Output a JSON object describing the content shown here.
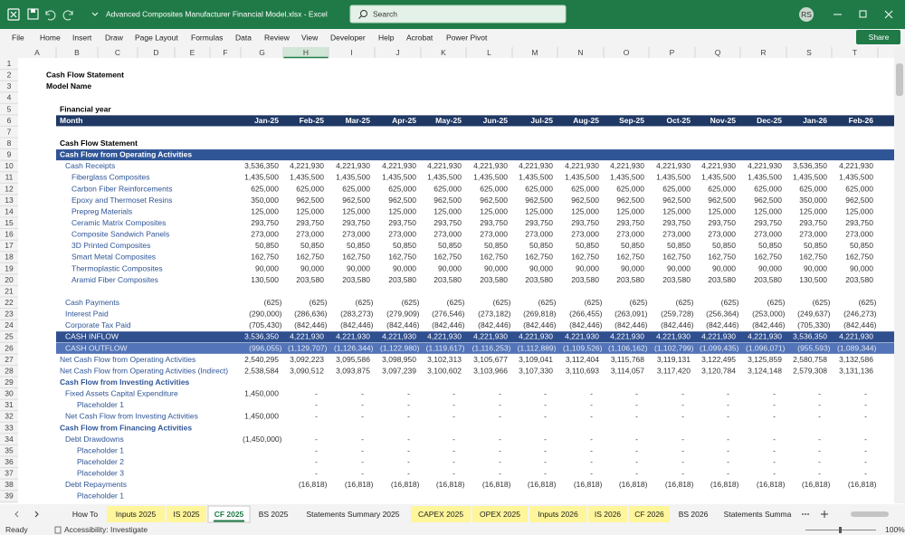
{
  "window": {
    "file_title": "Advanced Composites Manufacturer Financial Model.xlsx  -  Excel",
    "search": "Search",
    "user": "RS"
  },
  "ribbon": {
    "tabs": [
      "File",
      "Home",
      "Insert",
      "Draw",
      "Page Layout",
      "Formulas",
      "Data",
      "Review",
      "View",
      "Developer",
      "Help",
      "Acrobat",
      "Power Pivot"
    ],
    "share": "Share"
  },
  "sheet": {
    "columns": [
      "A",
      "B",
      "C",
      "D",
      "E",
      "F",
      "G",
      "H",
      "I",
      "J",
      "K",
      "L",
      "M",
      "N",
      "O",
      "P",
      "Q",
      "R",
      "S",
      "T"
    ],
    "row_numbers": [
      1,
      2,
      3,
      4,
      5,
      6,
      7,
      8,
      9,
      10,
      11,
      12,
      13,
      14,
      15,
      16,
      17,
      18,
      19,
      20,
      21,
      22,
      23,
      24,
      25,
      26,
      27,
      28,
      29,
      30,
      31,
      32,
      33,
      34,
      35,
      36,
      37,
      38,
      39
    ],
    "rows": [
      null,
      {
        "label": "Cash Flow Statement"
      },
      {
        "label": "Model Name"
      },
      null,
      {
        "label": "Financial year"
      },
      {
        "label": "Month",
        "values": [
          "Jan-25",
          "Feb-25",
          "Mar-25",
          "Apr-25",
          "May-25",
          "Jun-25",
          "Jul-25",
          "Aug-25",
          "Sep-25",
          "Oct-25",
          "Nov-25",
          "Dec-25",
          "Jan-26",
          "Feb-26"
        ]
      },
      null,
      {
        "label": "Cash Flow Statement"
      },
      {
        "label": "Cash Flow from Operating Activities"
      },
      {
        "label": "Cash Receipts",
        "values": [
          "3,536,350",
          "4,221,930",
          "4,221,930",
          "4,221,930",
          "4,221,930",
          "4,221,930",
          "4,221,930",
          "4,221,930",
          "4,221,930",
          "4,221,930",
          "4,221,930",
          "4,221,930",
          "3,536,350",
          "4,221,930"
        ]
      },
      {
        "label": "Fiberglass Composites",
        "values": [
          "1,435,500",
          "1,435,500",
          "1,435,500",
          "1,435,500",
          "1,435,500",
          "1,435,500",
          "1,435,500",
          "1,435,500",
          "1,435,500",
          "1,435,500",
          "1,435,500",
          "1,435,500",
          "1,435,500",
          "1,435,500"
        ]
      },
      {
        "label": "Carbon Fiber Reinforcements",
        "values": [
          "625,000",
          "625,000",
          "625,000",
          "625,000",
          "625,000",
          "625,000",
          "625,000",
          "625,000",
          "625,000",
          "625,000",
          "625,000",
          "625,000",
          "625,000",
          "625,000"
        ]
      },
      {
        "label": "Epoxy and Thermoset Resins",
        "values": [
          "350,000",
          "962,500",
          "962,500",
          "962,500",
          "962,500",
          "962,500",
          "962,500",
          "962,500",
          "962,500",
          "962,500",
          "962,500",
          "962,500",
          "350,000",
          "962,500"
        ]
      },
      {
        "label": "Prepreg Materials",
        "values": [
          "125,000",
          "125,000",
          "125,000",
          "125,000",
          "125,000",
          "125,000",
          "125,000",
          "125,000",
          "125,000",
          "125,000",
          "125,000",
          "125,000",
          "125,000",
          "125,000"
        ]
      },
      {
        "label": "Ceramic Matrix Composites",
        "values": [
          "293,750",
          "293,750",
          "293,750",
          "293,750",
          "293,750",
          "293,750",
          "293,750",
          "293,750",
          "293,750",
          "293,750",
          "293,750",
          "293,750",
          "293,750",
          "293,750"
        ]
      },
      {
        "label": "Composite Sandwich Panels",
        "values": [
          "273,000",
          "273,000",
          "273,000",
          "273,000",
          "273,000",
          "273,000",
          "273,000",
          "273,000",
          "273,000",
          "273,000",
          "273,000",
          "273,000",
          "273,000",
          "273,000"
        ]
      },
      {
        "label": "3D Printed Composites",
        "values": [
          "50,850",
          "50,850",
          "50,850",
          "50,850",
          "50,850",
          "50,850",
          "50,850",
          "50,850",
          "50,850",
          "50,850",
          "50,850",
          "50,850",
          "50,850",
          "50,850"
        ]
      },
      {
        "label": "Smart Metal Composites",
        "values": [
          "162,750",
          "162,750",
          "162,750",
          "162,750",
          "162,750",
          "162,750",
          "162,750",
          "162,750",
          "162,750",
          "162,750",
          "162,750",
          "162,750",
          "162,750",
          "162,750"
        ]
      },
      {
        "label": "Thermoplastic Composites",
        "values": [
          "90,000",
          "90,000",
          "90,000",
          "90,000",
          "90,000",
          "90,000",
          "90,000",
          "90,000",
          "90,000",
          "90,000",
          "90,000",
          "90,000",
          "90,000",
          "90,000"
        ]
      },
      {
        "label": "Aramid Fiber Composites",
        "values": [
          "130,500",
          "203,580",
          "203,580",
          "203,580",
          "203,580",
          "203,580",
          "203,580",
          "203,580",
          "203,580",
          "203,580",
          "203,580",
          "203,580",
          "130,500",
          "203,580"
        ]
      },
      null,
      {
        "label": "Cash Payments",
        "values": [
          "(625)",
          "(625)",
          "(625)",
          "(625)",
          "(625)",
          "(625)",
          "(625)",
          "(625)",
          "(625)",
          "(625)",
          "(625)",
          "(625)",
          "(625)",
          "(625)"
        ]
      },
      {
        "label": "Interest Paid",
        "values": [
          "(290,000)",
          "(286,636)",
          "(283,273)",
          "(279,909)",
          "(276,546)",
          "(273,182)",
          "(269,818)",
          "(266,455)",
          "(263,091)",
          "(259,728)",
          "(256,364)",
          "(253,000)",
          "(249,637)",
          "(246,273)"
        ]
      },
      {
        "label": "Corporate Tax Paid",
        "values": [
          "(705,430)",
          "(842,446)",
          "(842,446)",
          "(842,446)",
          "(842,446)",
          "(842,446)",
          "(842,446)",
          "(842,446)",
          "(842,446)",
          "(842,446)",
          "(842,446)",
          "(842,446)",
          "(705,330)",
          "(842,446)"
        ]
      },
      {
        "label": "CASH INFLOW",
        "values": [
          "3,536,350",
          "4,221,930",
          "4,221,930",
          "4,221,930",
          "4,221,930",
          "4,221,930",
          "4,221,930",
          "4,221,930",
          "4,221,930",
          "4,221,930",
          "4,221,930",
          "4,221,930",
          "3,536,350",
          "4,221,930"
        ]
      },
      {
        "label": "CASH OUTFLOW",
        "values": [
          "(996,055)",
          "(1,129,707)",
          "(1,126,344)",
          "(1,122,980)",
          "(1,119,617)",
          "(1,116,253)",
          "(1,112,889)",
          "(1,109,526)",
          "(1,106,162)",
          "(1,102,799)",
          "(1,099,435)",
          "(1,096,071)",
          "(955,593)",
          "(1,089,344)"
        ]
      },
      {
        "label": "Net Cash Flow from Operating Activities",
        "values": [
          "2,540,295",
          "3,092,223",
          "3,095,586",
          "3,098,950",
          "3,102,313",
          "3,105,677",
          "3,109,041",
          "3,112,404",
          "3,115,768",
          "3,119,131",
          "3,122,495",
          "3,125,859",
          "2,580,758",
          "3,132,586"
        ]
      },
      {
        "label": "Net Cash Flow from Operating Activities (Indirect)",
        "values": [
          "2,538,584",
          "3,090,512",
          "3,093,875",
          "3,097,239",
          "3,100,602",
          "3,103,966",
          "3,107,330",
          "3,110,693",
          "3,114,057",
          "3,117,420",
          "3,120,784",
          "3,124,148",
          "2,579,308",
          "3,131,136"
        ]
      },
      {
        "label": "Cash Flow from Investing Activities"
      },
      {
        "label": "Fixed Assets Capital Expenditure",
        "values": [
          "1,450,000",
          "-",
          "-",
          "-",
          "-",
          "-",
          "-",
          "-",
          "-",
          "-",
          "-",
          "-",
          "-",
          "-"
        ]
      },
      {
        "label": "Placeholder 1",
        "values": [
          null,
          "-",
          "-",
          "-",
          "-",
          "-",
          "-",
          "-",
          "-",
          "-",
          "-",
          "-",
          "-",
          "-"
        ]
      },
      {
        "label": "Net Cash Flow from Investing Activities",
        "values": [
          "1,450,000",
          "-",
          "-",
          "-",
          "-",
          "-",
          "-",
          "-",
          "-",
          "-",
          "-",
          "-",
          "-",
          "-"
        ]
      },
      {
        "label": "Cash Flow from Financing Activities"
      },
      {
        "label": "Debt Drawdowns",
        "values": [
          "(1,450,000)",
          "-",
          "-",
          "-",
          "-",
          "-",
          "-",
          "-",
          "-",
          "-",
          "-",
          "-",
          "-",
          "-"
        ]
      },
      {
        "label": "Placeholder 1",
        "values": [
          null,
          "-",
          "-",
          "-",
          "-",
          "-",
          "-",
          "-",
          "-",
          "-",
          "-",
          "-",
          "-",
          "-"
        ]
      },
      {
        "label": "Placeholder 2",
        "values": [
          null,
          "-",
          "-",
          "-",
          "-",
          "-",
          "-",
          "-",
          "-",
          "-",
          "-",
          "-",
          "-",
          "-"
        ]
      },
      {
        "label": "Placeholder 3",
        "values": [
          null,
          "-",
          "-",
          "-",
          "-",
          "-",
          "-",
          "-",
          "-",
          "-",
          "-",
          "-",
          "-",
          "-"
        ]
      },
      {
        "label": "Debt Repayments",
        "values": [
          null,
          "(16,818)",
          "(16,818)",
          "(16,818)",
          "(16,818)",
          "(16,818)",
          "(16,818)",
          "(16,818)",
          "(16,818)",
          "(16,818)",
          "(16,818)",
          "(16,818)",
          "(16,818)",
          "(16,818)"
        ]
      },
      {
        "label": "Placeholder 1"
      }
    ]
  },
  "sheet_tabs": [
    {
      "name": "How To"
    },
    {
      "name": "Inputs 2025",
      "color": "#fff59a"
    },
    {
      "name": "IS 2025",
      "color": "#fff59a"
    },
    {
      "name": "CF 2025",
      "active": true
    },
    {
      "name": "BS 2025"
    },
    {
      "name": "Statements Summary 2025"
    },
    {
      "name": "CAPEX 2025",
      "color": "#fff59a"
    },
    {
      "name": "OPEX 2025",
      "color": "#fff59a"
    },
    {
      "name": "Inputs 2026",
      "color": "#fff59a"
    },
    {
      "name": "IS 2026",
      "color": "#fff59a"
    },
    {
      "name": "CF 2026",
      "color": "#fff59a"
    },
    {
      "name": "BS 2026"
    },
    {
      "name": "Statements Summa"
    }
  ],
  "status": {
    "ready": "Ready",
    "accessibility": "Accessibility: Investigate",
    "zoom": "100%"
  }
}
